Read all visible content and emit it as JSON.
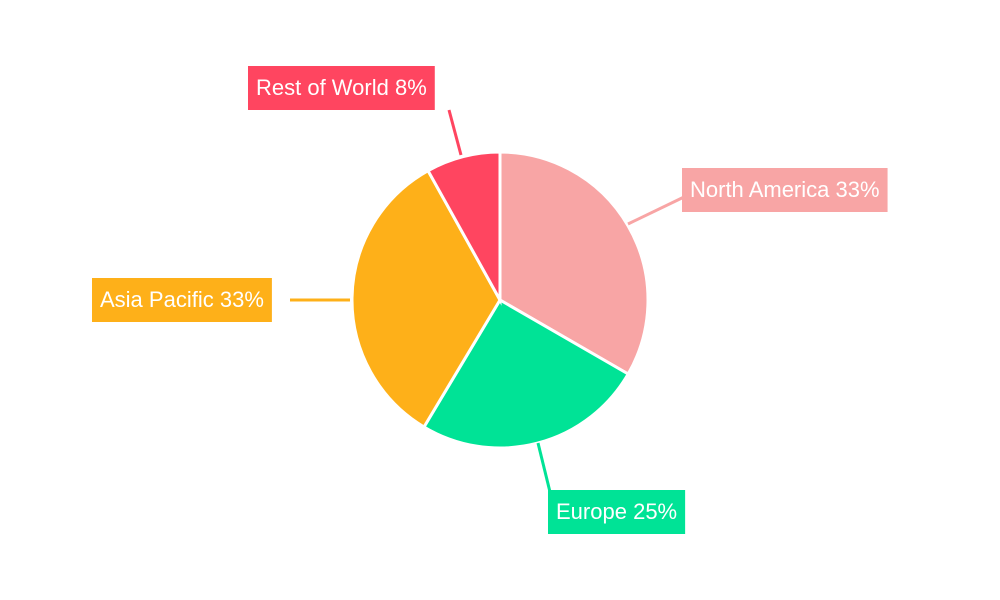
{
  "chart_data": {
    "type": "pie",
    "categories": [
      "North America",
      "Europe",
      "Asia Pacific",
      "Rest of World"
    ],
    "values": [
      33,
      25,
      33,
      8
    ],
    "value_labels": [
      "33%",
      "25%",
      "33%",
      "8%"
    ],
    "colors": [
      "#f8a5a5",
      "#00e396",
      "#feb019",
      "#ff4560"
    ]
  }
}
